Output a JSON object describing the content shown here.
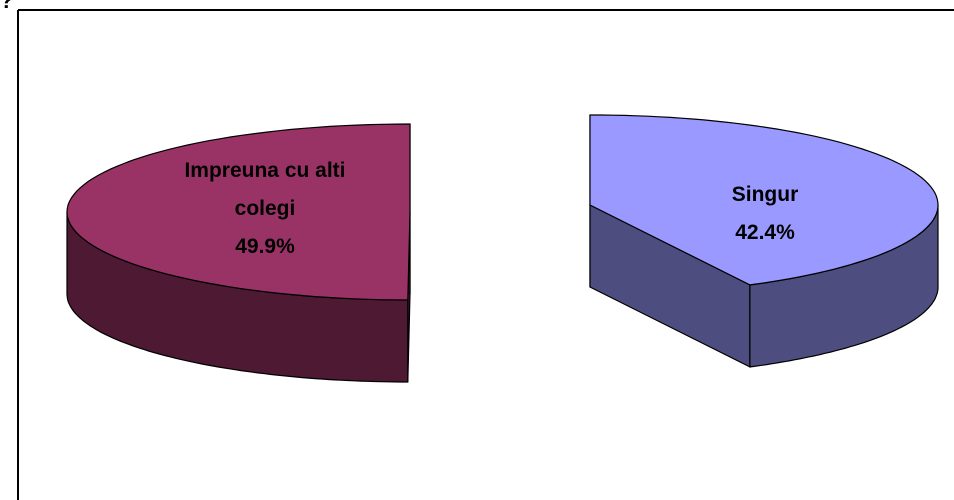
{
  "annotation": "?",
  "chart_data": {
    "type": "pie3d",
    "categories": [
      "Impreuna cu alti colegi",
      "Singur"
    ],
    "values": [
      49.9,
      42.4
    ],
    "value_labels": [
      "49.9%",
      "42.4%"
    ],
    "colors": [
      "#993366",
      "#9999ff"
    ],
    "side_colors": [
      "#4d1933",
      "#4d4d80"
    ]
  }
}
